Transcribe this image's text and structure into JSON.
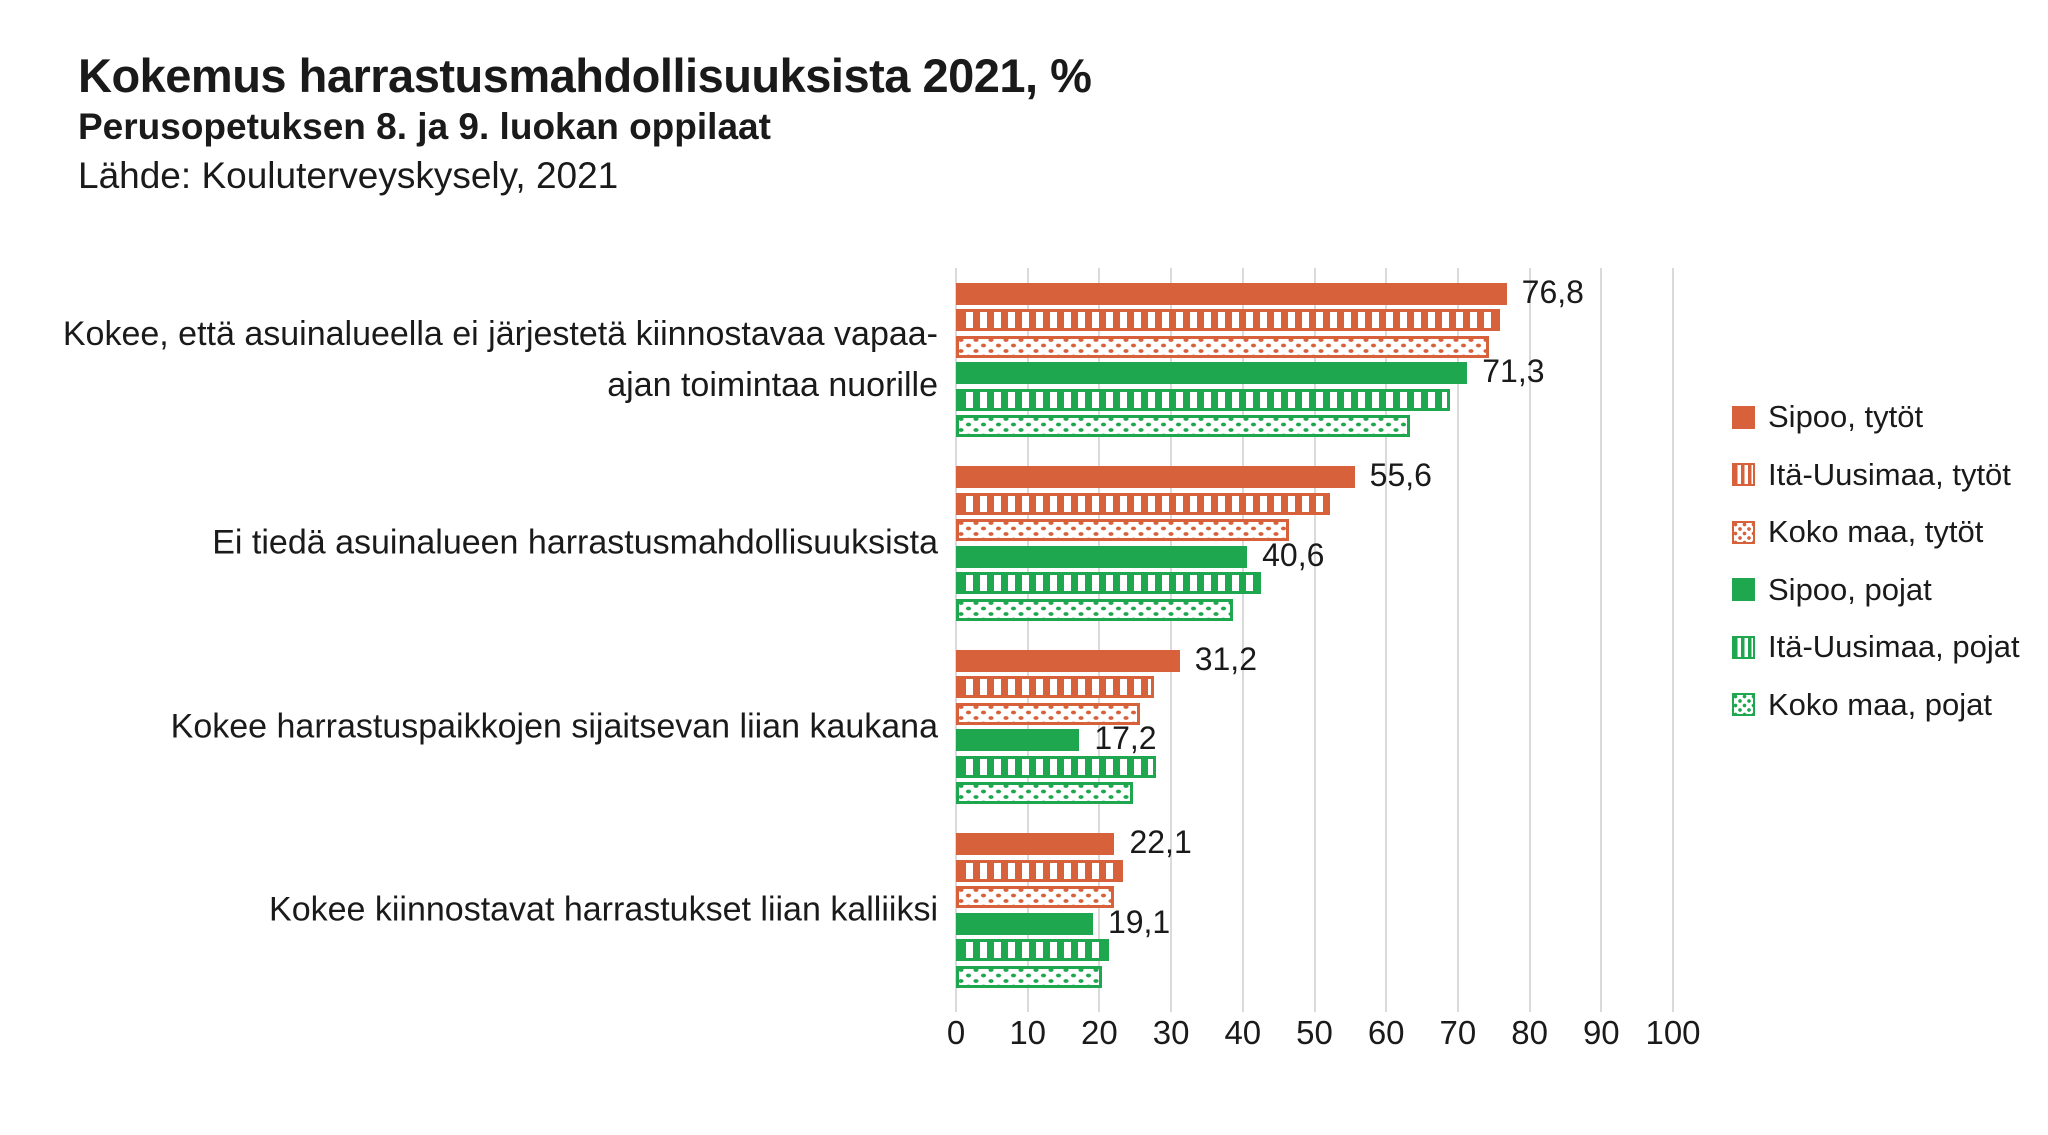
{
  "header": {
    "title": "Kokemus harrastusmahdollisuuksista 2021, %",
    "subtitle": "Perusopetuksen 8. ja 9. luokan oppilaat",
    "source": "Lähde: Kouluterveyskysely, 2021"
  },
  "colors": {
    "orange": "#D6613A",
    "green": "#1FA74F",
    "gridline": "#DADADA",
    "text": "#1A1A1A"
  },
  "chart_data": {
    "type": "bar",
    "orientation": "horizontal",
    "grid": "vertical",
    "legend_position": "right",
    "categories": [
      "Kokee, että asuinalueella ei järjestetä kiinnostavaa vapaa-ajan toimintaa nuorille",
      "Ei tiedä asuinalueen harrastusmahdollisuuksista",
      "Kokee harrastuspaikkojen sijaitsevan liian kaukana",
      "Kokee kiinnostavat harrastukset liian kalliiksi"
    ],
    "series": [
      {
        "name": "Sipoo, tytöt",
        "color": "orange",
        "pattern": "solid",
        "values": [
          76.8,
          55.6,
          31.2,
          22.1
        ],
        "data_labels": [
          "76,8",
          "55,6",
          "31,2",
          "22,1"
        ]
      },
      {
        "name": "Itä-Uusimaa, tytöt",
        "color": "orange",
        "pattern": "stripes",
        "values": [
          75.9,
          52.2,
          27.6,
          23.3
        ],
        "data_labels": null
      },
      {
        "name": "Koko maa, tytöt",
        "color": "orange",
        "pattern": "dots",
        "values": [
          74.4,
          46.4,
          25.6,
          22.0
        ],
        "data_labels": null
      },
      {
        "name": "Sipoo, pojat",
        "color": "green",
        "pattern": "solid",
        "values": [
          71.3,
          40.6,
          17.2,
          19.1
        ],
        "data_labels": [
          "71,3",
          "40,6",
          "17,2",
          "19,1"
        ]
      },
      {
        "name": "Itä-Uusimaa, pojat",
        "color": "green",
        "pattern": "stripes",
        "values": [
          68.9,
          42.6,
          27.9,
          21.3
        ],
        "data_labels": null
      },
      {
        "name": "Koko maa, pojat",
        "color": "green",
        "pattern": "dots",
        "values": [
          63.3,
          38.6,
          24.7,
          20.4
        ],
        "data_labels": null
      }
    ],
    "x_axis": {
      "min": 0,
      "max": 100,
      "tick_step": 10,
      "tick_labels": [
        "0",
        "10",
        "20",
        "30",
        "40",
        "50",
        "60",
        "70",
        "80",
        "90",
        "100"
      ]
    }
  }
}
